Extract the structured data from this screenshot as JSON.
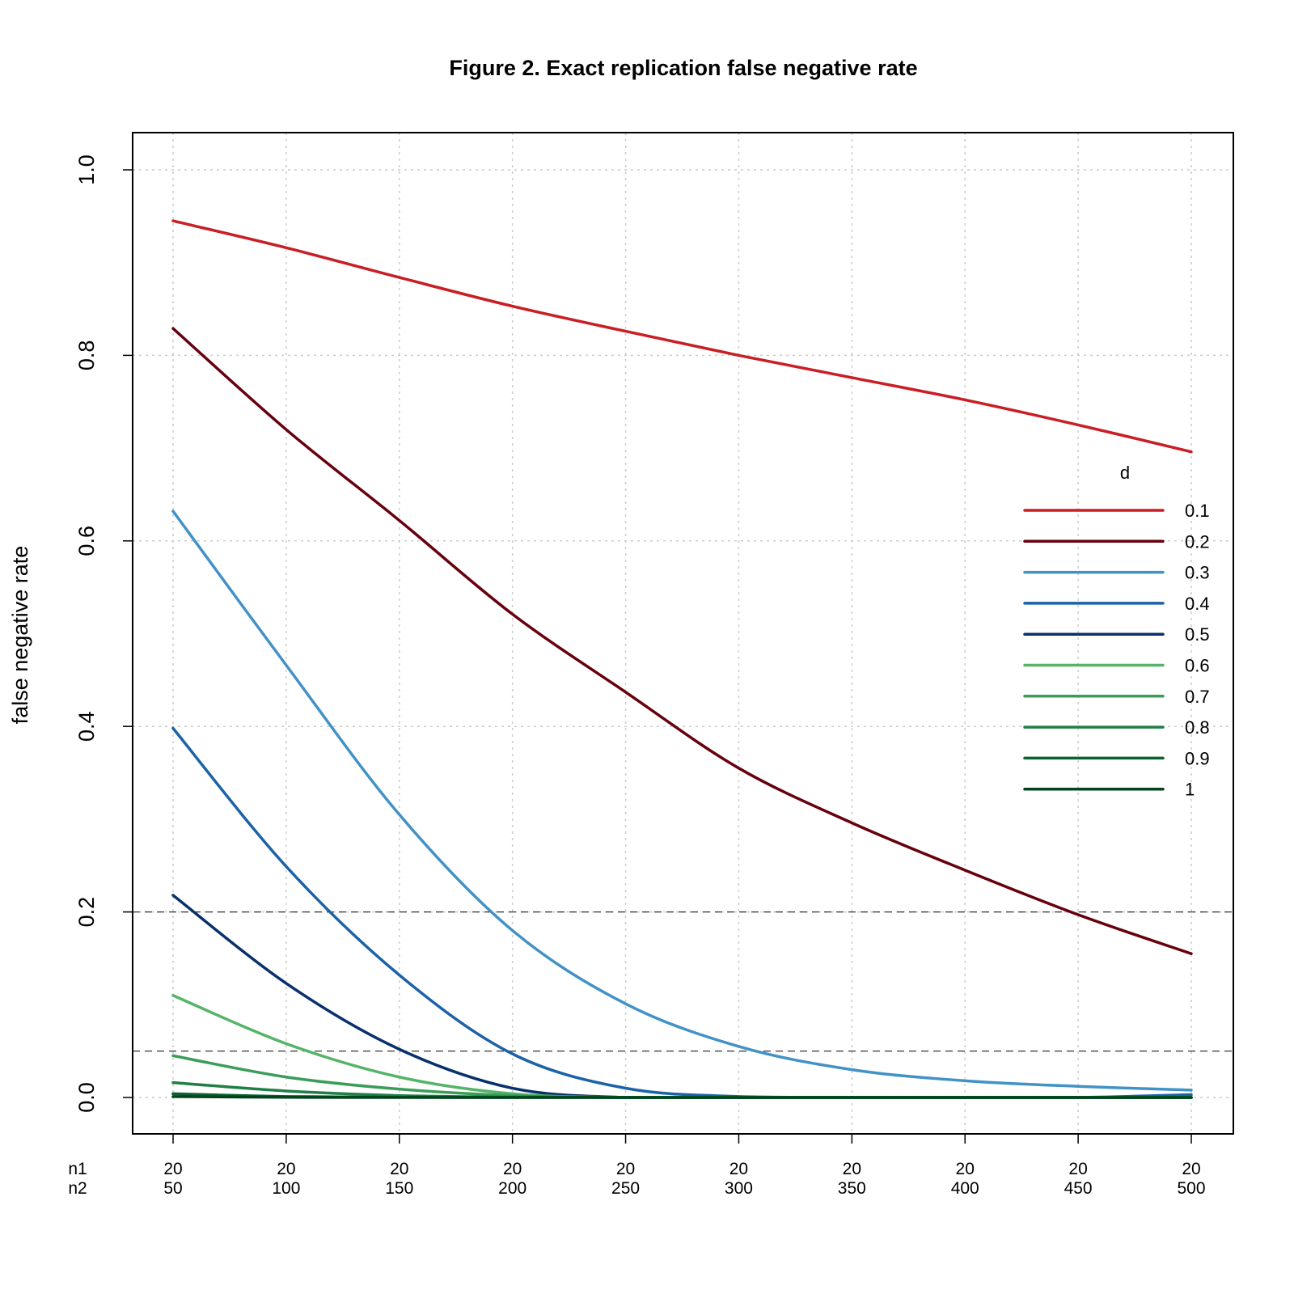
{
  "chart_data": {
    "type": "line",
    "title": "Figure 2. Exact replication false negative rate",
    "xlabel": "",
    "ylabel": "false negative rate",
    "x_row_labels": [
      "n1",
      "n2"
    ],
    "n1": 20,
    "x": [
      50,
      100,
      150,
      200,
      250,
      300,
      350,
      400,
      450,
      500
    ],
    "x_tick_labels_n1": [
      "20",
      "20",
      "20",
      "20",
      "20",
      "20",
      "20",
      "20",
      "20",
      "20"
    ],
    "x_tick_labels_n2": [
      "50",
      "100",
      "150",
      "200",
      "250",
      "300",
      "350",
      "400",
      "450",
      "500"
    ],
    "xlim": [
      50,
      500
    ],
    "ylim": [
      0,
      1
    ],
    "y_ticks": [
      0.0,
      0.2,
      0.4,
      0.6,
      0.8,
      1.0
    ],
    "y_tick_labels": [
      "0.0",
      "0.2",
      "0.4",
      "0.6",
      "0.8",
      "1.0"
    ],
    "grid": true,
    "reference_lines": [
      0.2,
      0.05
    ],
    "legend": {
      "title": "d",
      "placement": "right"
    },
    "series": [
      {
        "name": "0.1",
        "color": "#c81e24",
        "values": [
          0.945,
          0.916,
          0.884,
          0.853,
          0.826,
          0.8,
          0.776,
          0.752,
          0.725,
          0.696
        ]
      },
      {
        "name": "0.2",
        "color": "#67000d",
        "values": [
          0.829,
          0.72,
          0.622,
          0.521,
          0.437,
          0.355,
          0.296,
          0.245,
          0.197,
          0.155
        ]
      },
      {
        "name": "0.3",
        "color": "#4292c6",
        "values": [
          0.632,
          0.466,
          0.305,
          0.18,
          0.101,
          0.055,
          0.03,
          0.018,
          0.012,
          0.008
        ]
      },
      {
        "name": "0.4",
        "color": "#1c62a8",
        "values": [
          0.398,
          0.249,
          0.132,
          0.047,
          0.01,
          0.001,
          0.0,
          0.0,
          0.0,
          0.003
        ]
      },
      {
        "name": "0.5",
        "color": "#08306b",
        "values": [
          0.218,
          0.123,
          0.052,
          0.01,
          0.0,
          0.0,
          0.0,
          0.0,
          0.0,
          0.0
        ]
      },
      {
        "name": "0.6",
        "color": "#55b467",
        "values": [
          0.11,
          0.058,
          0.022,
          0.004,
          0.0,
          0.0,
          0.0,
          0.0,
          0.0,
          0.0
        ]
      },
      {
        "name": "0.7",
        "color": "#3a9d58",
        "values": [
          0.045,
          0.022,
          0.009,
          0.002,
          0.0,
          0.0,
          0.0,
          0.0,
          0.0,
          0.0
        ]
      },
      {
        "name": "0.8",
        "color": "#1f7f44",
        "values": [
          0.016,
          0.007,
          0.002,
          0.0005,
          0.0,
          0.0,
          0.0,
          0.0,
          0.0,
          0.0
        ]
      },
      {
        "name": "0.9",
        "color": "#0b6130",
        "values": [
          0.004,
          0.001,
          0.0002,
          0.0,
          0.0,
          0.0,
          0.0,
          0.0,
          0.0,
          0.0
        ]
      },
      {
        "name": "1",
        "color": "#00441b",
        "values": [
          0.001,
          0.0002,
          0.0,
          0.0,
          0.0,
          0.0,
          0.0,
          0.0,
          0.0,
          0.0
        ]
      }
    ]
  }
}
